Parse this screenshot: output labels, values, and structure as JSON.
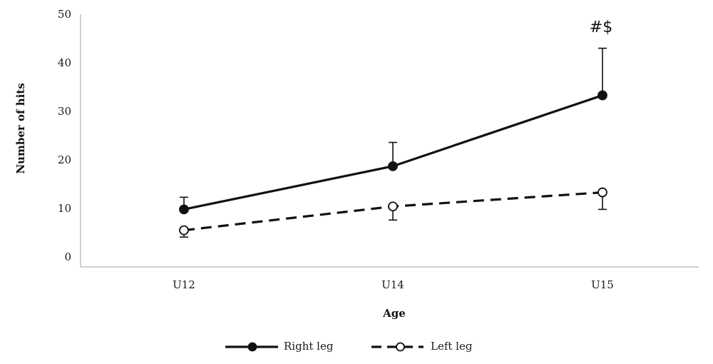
{
  "chart_data": {
    "type": "line",
    "categories": [
      "U12",
      "U14",
      "U15"
    ],
    "xlabel": "Age",
    "ylabel": "Number of hits",
    "ylim": [
      0,
      50
    ],
    "yticks": [
      0,
      10,
      20,
      30,
      40,
      50
    ],
    "grid": false,
    "legend_position": "bottom",
    "series": [
      {
        "name": "Right leg",
        "values": [
          9.8,
          18.7,
          33.3
        ],
        "error_upper": [
          12.3,
          23.6,
          43.0
        ],
        "line_style": "solid",
        "marker": "filled-circle",
        "color": "#111111"
      },
      {
        "name": "Left leg",
        "values": [
          5.5,
          10.4,
          13.3
        ],
        "error_lower": [
          4.1,
          7.6,
          9.8
        ],
        "line_style": "dashed",
        "marker": "open-circle",
        "color": "#111111"
      }
    ],
    "annotations": [
      {
        "text": "#$",
        "category": "U15"
      }
    ]
  }
}
